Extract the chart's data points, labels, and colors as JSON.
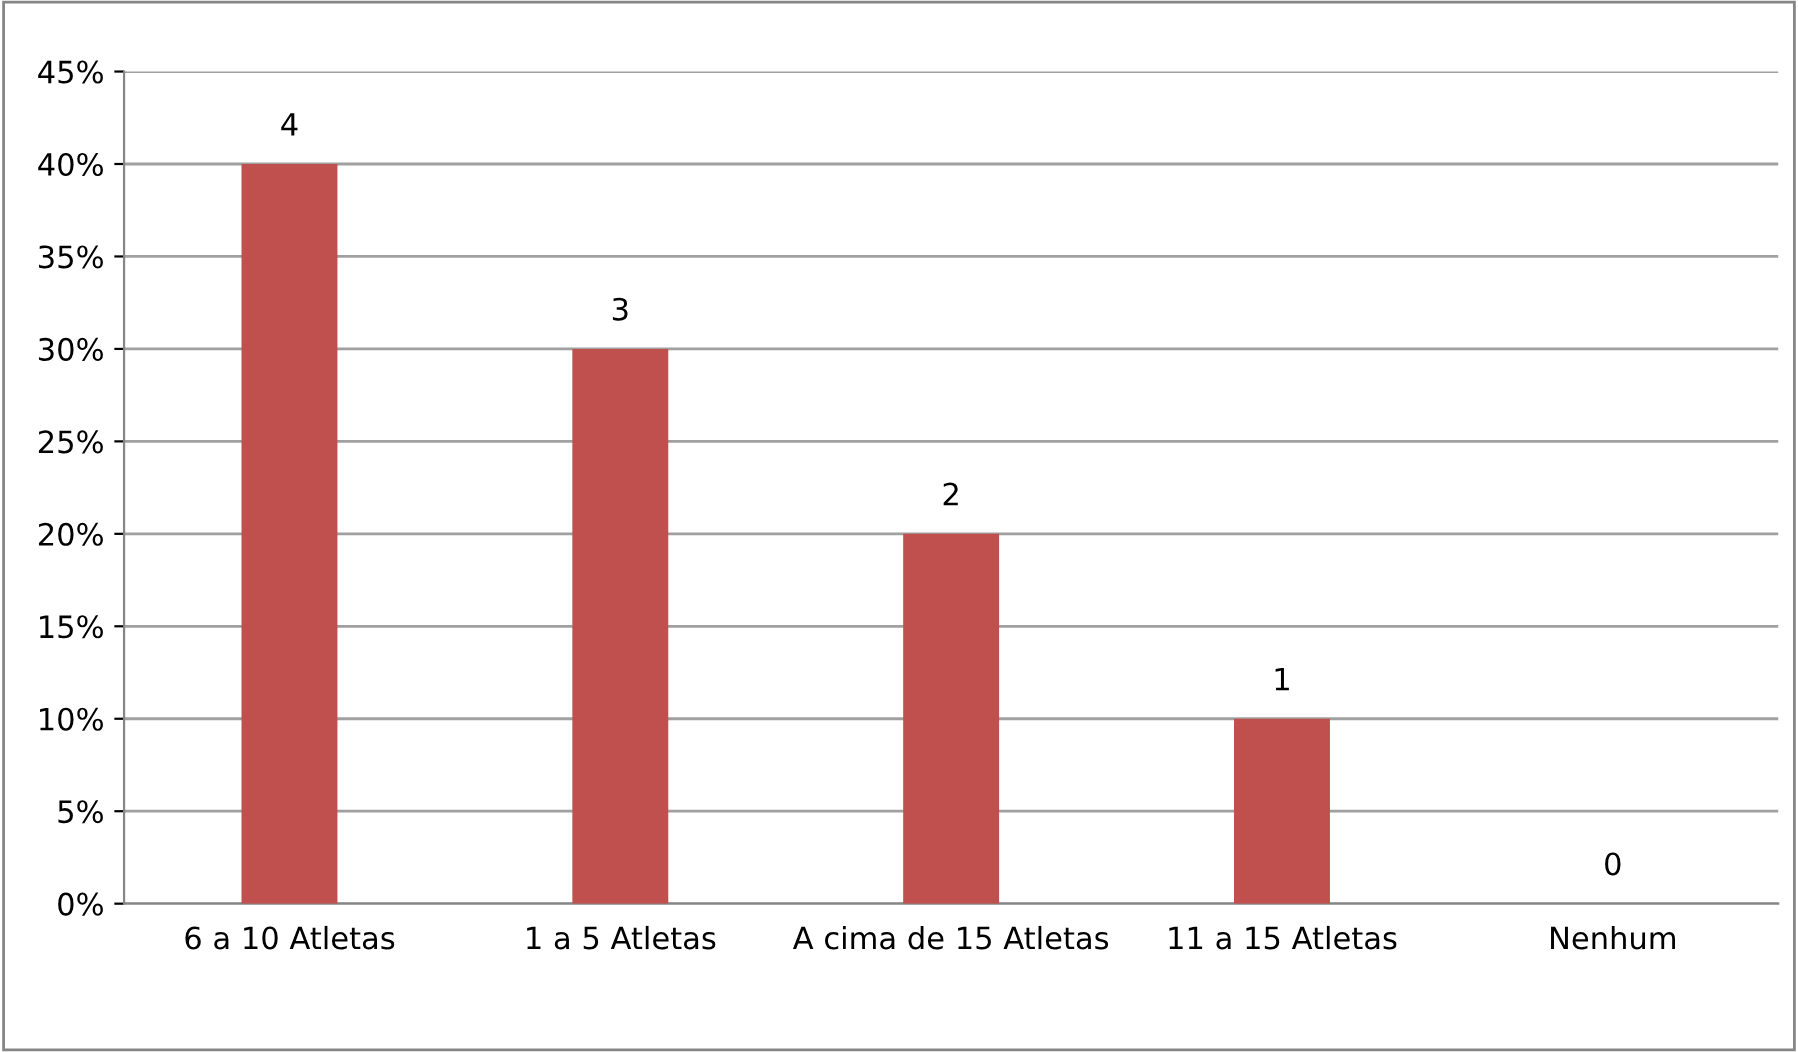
{
  "chart_data": {
    "type": "bar",
    "categories": [
      "6 a 10 Atletas",
      "1 a 5 Atletas",
      "A cima de 15 Atletas",
      "11 a 15 Atletas",
      "Nenhum"
    ],
    "values": [
      40,
      30,
      20,
      10,
      0
    ],
    "annotations": [
      {
        "text": "4",
        "x": "6 a 10 Atletas",
        "y": 40
      },
      {
        "text": "3",
        "x": "1 a 5 Atletas",
        "y": 30
      },
      {
        "text": "2",
        "x": "A cima de 15 Atletas",
        "y": 20
      },
      {
        "text": "1",
        "x": "11 a 15 Atletas",
        "y": 10
      },
      {
        "text": "0",
        "x": "Nenhum",
        "y": 0
      }
    ],
    "color": "#c0504d",
    "ylim": [
      0,
      45
    ],
    "yticks": [
      {
        "value": 0,
        "label": "0%"
      },
      {
        "value": 5,
        "label": "5%"
      },
      {
        "value": 10,
        "label": "10%"
      },
      {
        "value": 15,
        "label": "15%"
      },
      {
        "value": 20,
        "label": "20%"
      },
      {
        "value": 25,
        "label": "25%"
      },
      {
        "value": 30,
        "label": "30%"
      },
      {
        "value": 35,
        "label": "35%"
      },
      {
        "value": 40,
        "label": "40%"
      },
      {
        "value": 45,
        "label": "45%"
      }
    ],
    "grid": "y",
    "legend": false
  }
}
